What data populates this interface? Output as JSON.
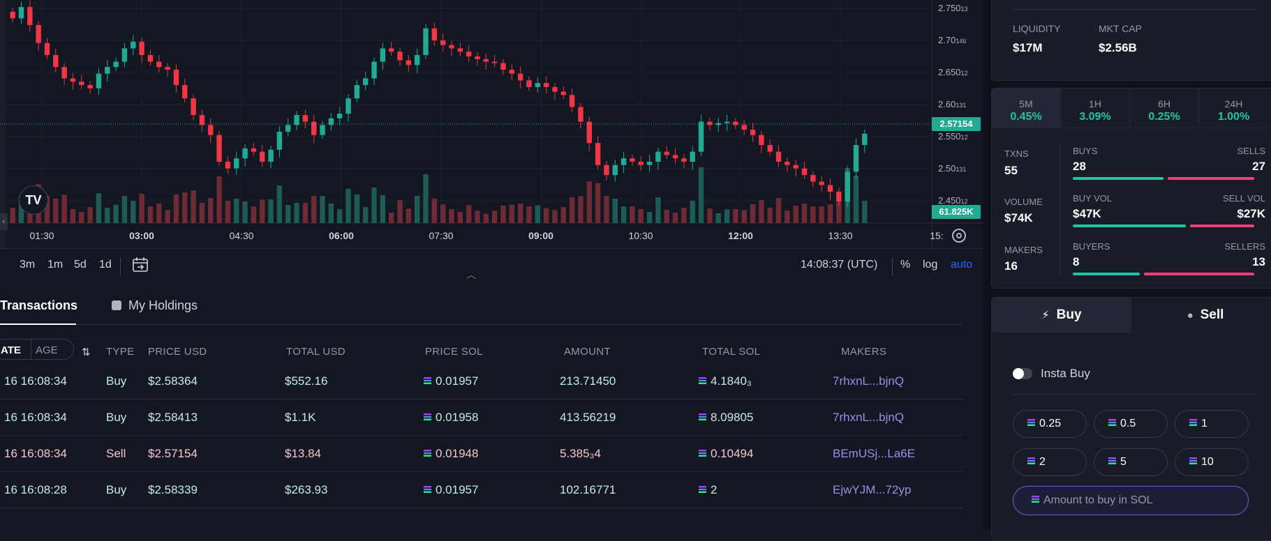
{
  "chart": {
    "price_axis": [
      {
        "text": "2.750",
        "sub": "13"
      },
      {
        "text": "2.70",
        "sub": "146"
      },
      {
        "text": "2.650",
        "sub": "12"
      },
      {
        "text": "2.60",
        "sub": "131"
      },
      {
        "text": "2.550",
        "sub": "12"
      },
      {
        "text": "2.50",
        "sub": "131"
      },
      {
        "text": "2.450",
        "sub": "12"
      }
    ],
    "last_price": "2.57154",
    "last_volume": "61.825K",
    "time_axis": [
      "01:30",
      "03:00",
      "04:30",
      "06:00",
      "07:30",
      "09:00",
      "10:30",
      "12:00",
      "13:30",
      "15:"
    ],
    "up_color": "#22ab94",
    "down_color": "#f23645"
  },
  "chart_data": {
    "type": "candlestick",
    "x_labels": [
      "01:30",
      "03:00",
      "04:30",
      "06:00",
      "07:30",
      "09:00",
      "10:30",
      "12:00",
      "13:30"
    ],
    "ylim": [
      2.44,
      2.76
    ],
    "close": [
      2.745,
      2.762,
      2.735,
      2.708,
      2.69,
      2.672,
      2.655,
      2.65,
      2.645,
      2.64,
      2.662,
      2.672,
      2.68,
      2.7,
      2.71,
      2.69,
      2.68,
      2.672,
      2.668,
      2.645,
      2.625,
      2.6,
      2.585,
      2.57,
      2.53,
      2.52,
      2.535,
      2.55,
      2.545,
      2.53,
      2.548,
      2.575,
      2.585,
      2.6,
      2.59,
      2.57,
      2.585,
      2.595,
      2.602,
      2.625,
      2.645,
      2.655,
      2.68,
      2.7,
      2.695,
      2.682,
      2.675,
      2.69,
      2.73,
      2.712,
      2.705,
      2.7,
      2.695,
      2.688,
      2.684,
      2.68,
      2.678,
      2.668,
      2.662,
      2.652,
      2.642,
      2.648,
      2.642,
      2.635,
      2.63,
      2.612,
      2.59,
      2.558,
      2.525,
      2.51,
      2.525,
      2.535,
      2.53,
      2.525,
      2.53,
      2.545,
      2.54,
      2.535,
      2.53,
      2.545,
      2.59,
      2.585,
      2.588,
      2.59,
      2.585,
      2.578,
      2.57,
      2.555,
      2.545,
      2.53,
      2.525,
      2.52,
      2.51,
      2.5,
      2.495,
      2.485,
      2.47,
      2.515,
      2.555,
      2.572
    ],
    "volume_peak": "61.825K"
  },
  "toolbar": {
    "ranges": [
      "3m",
      "1m",
      "5d",
      "1d"
    ],
    "time": "14:08:37 (UTC)",
    "percent": "%",
    "log": "log",
    "auto": "auto"
  },
  "tabs": {
    "transactions": "Transactions",
    "holdings": "My Holdings"
  },
  "table": {
    "date_toggle": "ATE",
    "age_toggle": "AGE",
    "headers": [
      "TYPE",
      "PRICE USD",
      "TOTAL USD",
      "PRICE SOL",
      "AMOUNT",
      "TOTAL SOL",
      "MAKERS"
    ],
    "rows": [
      {
        "date": "16 16:08:34",
        "type": "Buy",
        "price_usd": "$2.58364",
        "total_usd": "$552.16",
        "price_sol": "0.01957",
        "amount": "213.71450",
        "total_sol": "4.1840₃",
        "maker": "7rhxnL...bjnQ",
        "kind": "buy"
      },
      {
        "date": "16 16:08:34",
        "type": "Buy",
        "price_usd": "$2.58413",
        "total_usd": "$1.1K",
        "price_sol": "0.01958",
        "amount": "413.56219",
        "total_sol": "8.09805",
        "maker": "7rhxnL...bjnQ",
        "kind": "buy"
      },
      {
        "date": "16 16:08:34",
        "type": "Sell",
        "price_usd": "$2.57154",
        "total_usd": "$13.84",
        "price_sol": "0.01948",
        "amount": "5.385₃4",
        "total_sol": "0.10494",
        "maker": "BEmUSj...La6E",
        "kind": "sell"
      },
      {
        "date": "16 16:08:28",
        "type": "Buy",
        "price_usd": "$2.58339",
        "total_usd": "$263.93",
        "price_sol": "0.01957",
        "amount": "102.16771",
        "total_sol": "2",
        "maker": "EjwYJM...72yp",
        "kind": "buy"
      }
    ]
  },
  "stats": {
    "liquidity_label": "LIQUIDITY",
    "liquidity": "$17M",
    "mktcap_label": "MKT CAP",
    "mktcap": "$2.56B",
    "periods": [
      {
        "name": "5M",
        "value": "0.45%"
      },
      {
        "name": "1H",
        "value": "3.09%"
      },
      {
        "name": "6H",
        "value": "0.25%"
      },
      {
        "name": "24H",
        "value": "1.00%"
      }
    ],
    "txns_label": "TXNS",
    "txns": "55",
    "volume_label": "VOLUME",
    "volume": "$74K",
    "makers_label": "MAKERS",
    "makers": "16",
    "buys_label": "BUYS",
    "buys": "28",
    "sells_label": "SELLS",
    "sells": "27",
    "buyvol_label": "BUY VOL",
    "buyvol": "$47K",
    "sellvol_label": "SELL VOL",
    "sellvol": "$27K",
    "buyers_label": "BUYERS",
    "buyers": "8",
    "sellers_label": "SELLERS",
    "sellers": "13",
    "buy_ratio": [
      0.51,
      0.635,
      0.38
    ],
    "accent_green": "#22c3a6",
    "accent_red": "#f23f79"
  },
  "trade": {
    "buy_tab": "Buy",
    "sell_tab": "Sell",
    "insta_buy": "Insta Buy",
    "amounts": [
      "0.25",
      "0.5",
      "1",
      "2",
      "5",
      "10"
    ],
    "input_placeholder": "Amount to buy in SOL"
  }
}
